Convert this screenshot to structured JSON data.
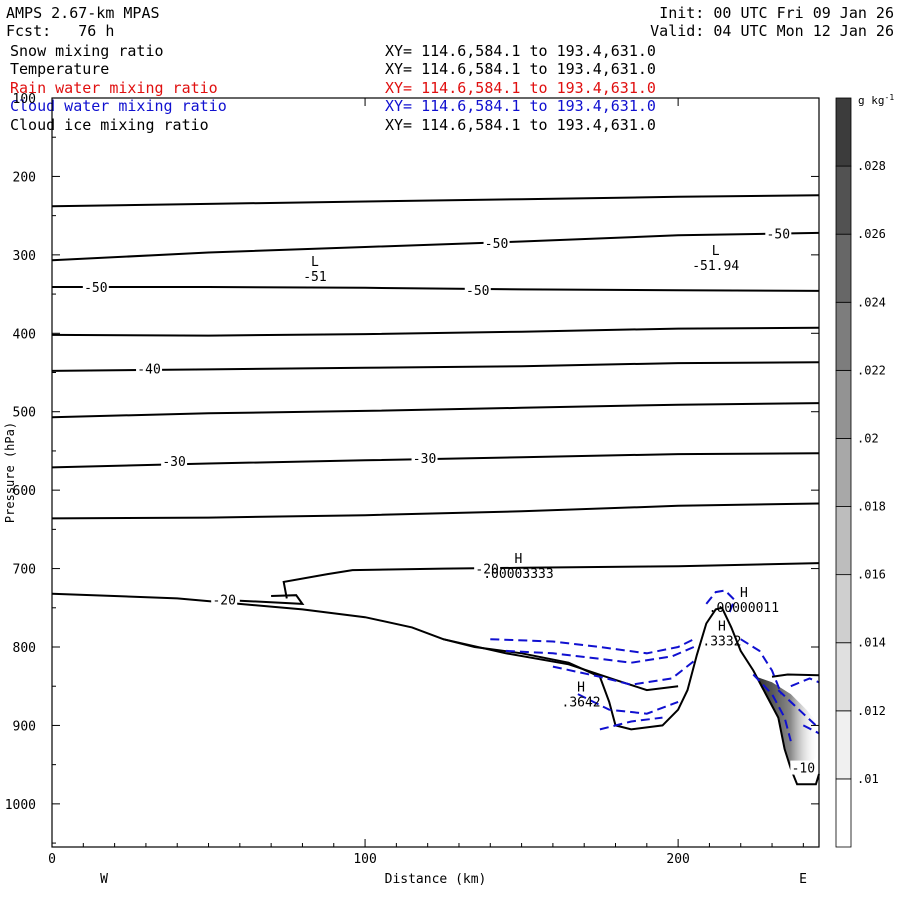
{
  "header": {
    "model": "AMPS 2.67-km MPAS",
    "forecast": "Fcst:   76 h",
    "init": "Init: 00 UTC Fri 09 Jan 26",
    "valid": "Valid: 04 UTC Mon 12 Jan 26"
  },
  "fields": [
    {
      "name": "Snow mixing ratio",
      "xy": "XY= 114.6,584.1 to 193.4,631.0",
      "color": "#000000"
    },
    {
      "name": "Temperature",
      "xy": "XY= 114.6,584.1 to 193.4,631.0",
      "color": "#000000"
    },
    {
      "name": "Rain water mixing ratio",
      "xy": "XY= 114.6,584.1 to 193.4,631.0",
      "color": "#e01010"
    },
    {
      "name": "Cloud water mixing ratio",
      "xy": "XY= 114.6,584.1 to 193.4,631.0",
      "color": "#1010d0"
    },
    {
      "name": "Cloud ice mixing ratio",
      "xy": "XY= 114.6,584.1 to 193.4,631.0",
      "color": "#000000"
    }
  ],
  "chart_data": {
    "type": "cross-section",
    "xlabel": "Distance (km)",
    "ylabel": "Pressure (hPa)",
    "xlim": [
      0,
      245
    ],
    "ylim": [
      100,
      1055
    ],
    "xticks": [
      0,
      100,
      200
    ],
    "yticks": [
      100,
      200,
      300,
      400,
      500,
      600,
      700,
      800,
      900,
      1000
    ],
    "west_label": "W",
    "east_label": "E",
    "colorbar": {
      "unit": "g kg",
      "unit_exp": "-1",
      "levels": [
        ".01",
        ".012",
        ".014",
        ".016",
        ".018",
        ".02",
        ".022",
        ".024",
        ".026",
        ".028"
      ],
      "colors": [
        "#ffffff",
        "#f0f0f0",
        "#e0e0e0",
        "#cfcfcf",
        "#bdbdbd",
        "#a8a8a8",
        "#939393",
        "#7d7d7d",
        "#676767",
        "#525252",
        "#3c3c3c"
      ]
    },
    "temperature_contours": [
      {
        "points": [
          [
            0,
            238
          ],
          [
            50,
            235
          ],
          [
            100,
            232
          ],
          [
            150,
            229
          ],
          [
            200,
            226
          ],
          [
            245,
            224
          ]
        ]
      },
      {
        "points": [
          [
            0,
            307
          ],
          [
            50,
            297
          ],
          [
            100,
            290
          ],
          [
            150,
            283
          ],
          [
            200,
            275
          ],
          [
            245,
            272
          ]
        ]
      },
      {
        "points": [
          [
            0,
            341
          ],
          [
            50,
            341
          ],
          [
            100,
            342
          ],
          [
            150,
            344
          ],
          [
            200,
            345
          ],
          [
            245,
            346
          ]
        ]
      },
      {
        "points": [
          [
            0,
            402
          ],
          [
            50,
            403
          ],
          [
            100,
            401
          ],
          [
            150,
            398
          ],
          [
            200,
            394
          ],
          [
            245,
            393
          ]
        ]
      },
      {
        "points": [
          [
            0,
            448
          ],
          [
            50,
            446
          ],
          [
            100,
            444
          ],
          [
            150,
            442
          ],
          [
            200,
            438
          ],
          [
            245,
            437
          ]
        ]
      },
      {
        "points": [
          [
            0,
            507
          ],
          [
            50,
            502
          ],
          [
            100,
            499
          ],
          [
            150,
            495
          ],
          [
            200,
            491
          ],
          [
            245,
            489
          ]
        ]
      },
      {
        "points": [
          [
            0,
            571
          ],
          [
            50,
            566
          ],
          [
            100,
            562
          ],
          [
            150,
            558
          ],
          [
            200,
            554
          ],
          [
            245,
            553
          ]
        ]
      },
      {
        "points": [
          [
            0,
            636
          ],
          [
            50,
            635
          ],
          [
            100,
            632
          ],
          [
            150,
            627
          ],
          [
            200,
            620
          ],
          [
            245,
            617
          ]
        ]
      },
      {
        "points": [
          [
            75,
            738
          ],
          [
            74,
            717
          ],
          [
            88,
            707
          ],
          [
            96,
            702
          ],
          [
            125,
            700
          ],
          [
            150,
            699
          ],
          [
            200,
            697
          ],
          [
            245,
            693
          ]
        ]
      },
      {
        "points": [
          [
            70,
            735
          ],
          [
            78,
            734
          ],
          [
            80,
            745
          ],
          [
            60,
            741
          ]
        ]
      }
    ],
    "terrain": [
      [
        0,
        732
      ],
      [
        40,
        738
      ],
      [
        80,
        752
      ],
      [
        100,
        762
      ],
      [
        115,
        775
      ],
      [
        125,
        790
      ],
      [
        135,
        800
      ],
      [
        150,
        808
      ],
      [
        165,
        820
      ],
      [
        175,
        838
      ],
      [
        178,
        870
      ],
      [
        180,
        900
      ],
      [
        185,
        905
      ],
      [
        195,
        900
      ],
      [
        200,
        880
      ],
      [
        203,
        855
      ],
      [
        206,
        810
      ],
      [
        209,
        770
      ],
      [
        212,
        752
      ],
      [
        214,
        750
      ],
      [
        217,
        775
      ],
      [
        220,
        805
      ],
      [
        224,
        830
      ],
      [
        228,
        860
      ],
      [
        232,
        890
      ],
      [
        234,
        930
      ],
      [
        236,
        955
      ],
      [
        238,
        975
      ],
      [
        244,
        975
      ],
      [
        245,
        962
      ]
    ],
    "cloud_base": [
      [
        125,
        790
      ],
      [
        145,
        808
      ],
      [
        165,
        822
      ],
      [
        180,
        842
      ],
      [
        190,
        855
      ],
      [
        200,
        850
      ]
    ],
    "cloud_top_east": [
      [
        230,
        838
      ],
      [
        235,
        835
      ],
      [
        245,
        836
      ]
    ],
    "temperature_labels": [
      {
        "text": "-50",
        "x": 14,
        "y": 342
      },
      {
        "text": "-50",
        "x": 142,
        "y": 286
      },
      {
        "text": "-50",
        "x": 136,
        "y": 346
      },
      {
        "text": "-50",
        "x": 232,
        "y": 274
      },
      {
        "text": "-40",
        "x": 31,
        "y": 446
      },
      {
        "text": "-30",
        "x": 39,
        "y": 564
      },
      {
        "text": "-30",
        "x": 119,
        "y": 560
      },
      {
        "text": "-20",
        "x": 139,
        "y": 701
      },
      {
        "text": "-20",
        "x": 55,
        "y": 741
      },
      {
        "text": "-10",
        "x": 240,
        "y": 955
      }
    ],
    "extrema": [
      {
        "type": "L",
        "value": "-51",
        "x": 84,
        "y": 314
      },
      {
        "type": "L",
        "value": "-51.94",
        "x": 212,
        "y": 300
      },
      {
        "type": "H",
        "value": ".00003333",
        "x": 149,
        "y": 693
      },
      {
        "type": "H",
        "value": ".00000011",
        "x": 221,
        "y": 736
      },
      {
        "type": "H",
        "value": ".3332",
        "x": 214,
        "y": 779
      },
      {
        "type": "H",
        "value": ".3642",
        "x": 169,
        "y": 857
      }
    ],
    "cloud_water_contours": [
      {
        "points": [
          [
            140,
            790
          ],
          [
            160,
            793
          ],
          [
            175,
            800
          ],
          [
            190,
            808
          ],
          [
            200,
            800
          ],
          [
            205,
            790
          ]
        ]
      },
      {
        "points": [
          [
            145,
            805
          ],
          [
            160,
            808
          ],
          [
            175,
            815
          ],
          [
            185,
            820
          ],
          [
            198,
            812
          ],
          [
            205,
            800
          ]
        ]
      },
      {
        "points": [
          [
            160,
            825
          ],
          [
            175,
            838
          ],
          [
            185,
            848
          ],
          [
            198,
            840
          ],
          [
            206,
            815
          ]
        ]
      },
      {
        "points": [
          [
            168,
            860
          ],
          [
            178,
            880
          ],
          [
            190,
            885
          ],
          [
            200,
            870
          ]
        ]
      },
      {
        "points": [
          [
            175,
            905
          ],
          [
            185,
            895
          ],
          [
            195,
            890
          ]
        ]
      },
      {
        "points": [
          [
            209,
            745
          ],
          [
            212,
            730
          ],
          [
            215,
            728
          ],
          [
            218,
            740
          ],
          [
            216,
            760
          ]
        ]
      },
      {
        "points": [
          [
            220,
            790
          ],
          [
            226,
            805
          ],
          [
            230,
            830
          ],
          [
            233,
            860
          ]
        ]
      },
      {
        "points": [
          [
            224,
            835
          ],
          [
            230,
            860
          ],
          [
            234,
            890
          ],
          [
            236,
            920
          ]
        ]
      },
      {
        "points": [
          [
            232,
            855
          ],
          [
            240,
            885
          ],
          [
            244,
            900
          ]
        ]
      },
      {
        "points": [
          [
            236,
            850
          ],
          [
            242,
            840
          ],
          [
            245,
            845
          ]
        ]
      },
      {
        "points": [
          [
            240,
            900
          ],
          [
            245,
            910
          ]
        ]
      }
    ]
  }
}
